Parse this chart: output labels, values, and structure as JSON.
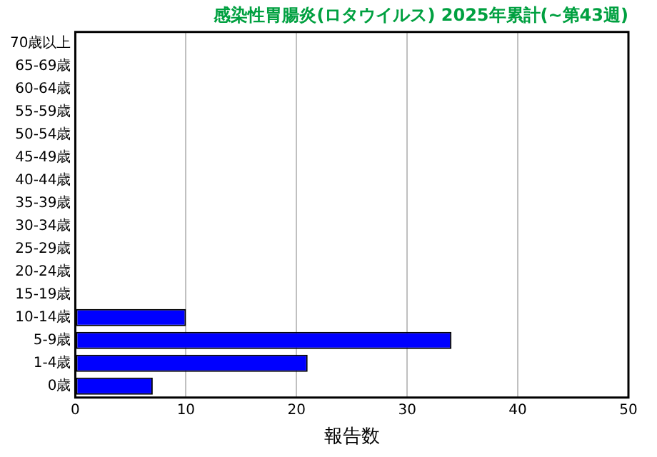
{
  "chart_data": {
    "type": "bar",
    "orientation": "horizontal",
    "title": "感染性胃腸炎(ロタウイルス) 2025年累計(~第43週)",
    "xlabel": "報告数",
    "categories": [
      "70歳以上",
      "65-69歳",
      "60-64歳",
      "55-59歳",
      "50-54歳",
      "45-49歳",
      "40-44歳",
      "35-39歳",
      "30-34歳",
      "25-29歳",
      "20-24歳",
      "15-19歳",
      "10-14歳",
      "5-9歳",
      "1-4歳",
      "0歳"
    ],
    "values": [
      0,
      0,
      0,
      0,
      0,
      0,
      0,
      0,
      0,
      0,
      0,
      0,
      10,
      34,
      21,
      7
    ],
    "color": "#0000ff",
    "xlim": [
      0,
      50
    ],
    "xticks": [
      0,
      10,
      20,
      30,
      40,
      50
    ],
    "grid": "x",
    "legend": false
  }
}
